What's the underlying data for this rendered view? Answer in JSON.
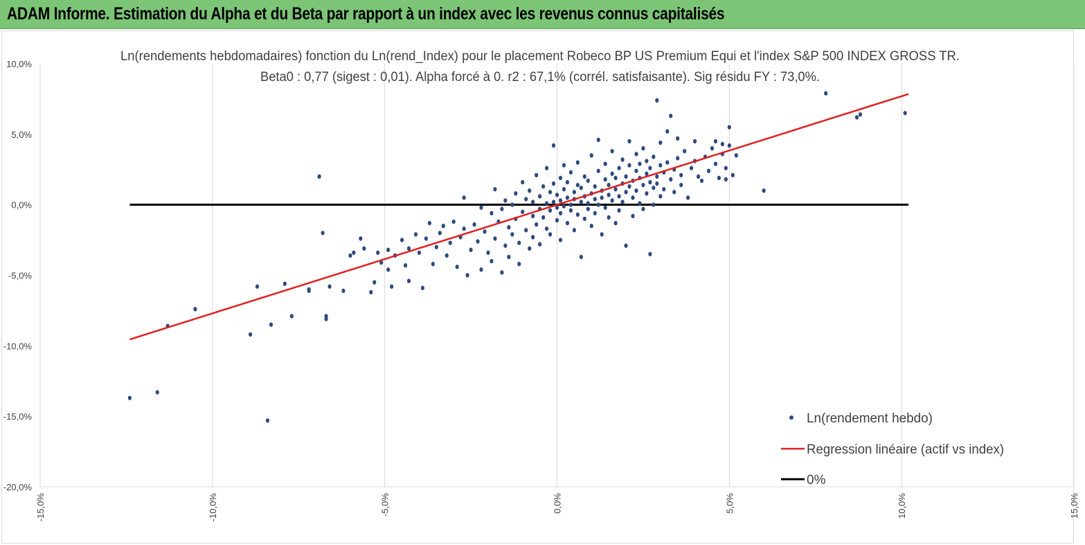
{
  "banner": {
    "title": "ADAM Informe. Estimation du Alpha et du Beta par rapport à un index avec les revenus connus capitalisés"
  },
  "colors": {
    "banner_bg": "#7cc576",
    "points": "#2e4a7f",
    "regression": "#e02020",
    "zero_line": "#000000",
    "grid": "#d9d9d9"
  },
  "chart_data": {
    "type": "scatter",
    "title": "Ln(rendements hebdomadaires) fonction du Ln(rend_Index) pour le placement Robeco BP US Premium Equi et l'index S&P 500 INDEX GROSS TR.",
    "subtitle": "Beta0 : 0,77  (sigest : 0,01). Alpha forcé à 0. r2 : 67,1% (corrél. satisfaisante). Sig résidu FY : 73,0%.",
    "xlim": [
      -15,
      15
    ],
    "ylim": [
      -20,
      10
    ],
    "x_ticks": [
      -15,
      -10,
      -5,
      0,
      5,
      10,
      15
    ],
    "x_tick_labels": [
      "-15,0%",
      "-10,0%",
      "-5,0%",
      "0,0%",
      "5,0%",
      "10,0%",
      "15,0%"
    ],
    "y_ticks": [
      10,
      5,
      0,
      -5,
      -10,
      -15,
      -20
    ],
    "y_tick_labels": [
      "10,0%",
      "5,0%",
      "0,0%",
      "-5,0%",
      "-10,0%",
      "-15,0%",
      "-20,0%"
    ],
    "grid": "vertical",
    "legend_position": "bottom-right",
    "legend": [
      {
        "label": "Ln(rendement hebdo)",
        "kind": "marker"
      },
      {
        "label": "Regression linéaire (actif vs index)",
        "kind": "line"
      },
      {
        "label": "0%",
        "kind": "line"
      }
    ],
    "regression": {
      "beta": 0.77,
      "x": [
        -12.4,
        10.2
      ],
      "y": [
        -9.55,
        7.85
      ]
    },
    "zero_line": {
      "x": [
        -12.4,
        10.2
      ],
      "y": [
        0,
        0
      ]
    },
    "series": [
      {
        "name": "Ln(rendement hebdo)",
        "points": [
          [
            -12.4,
            -13.7
          ],
          [
            -11.6,
            -13.3
          ],
          [
            -11.3,
            -8.6
          ],
          [
            -10.5,
            -7.4
          ],
          [
            -8.9,
            -9.2
          ],
          [
            -8.7,
            -5.8
          ],
          [
            -8.4,
            -15.3
          ],
          [
            -8.3,
            -8.5
          ],
          [
            -7.9,
            -5.6
          ],
          [
            -7.7,
            -7.9
          ],
          [
            -7.2,
            -6.0
          ],
          [
            -7.2,
            -6.1
          ],
          [
            -6.9,
            2.0
          ],
          [
            -6.8,
            -2.0
          ],
          [
            -6.7,
            -8.1
          ],
          [
            -6.7,
            -7.9
          ],
          [
            -6.6,
            -5.8
          ],
          [
            -6.2,
            -6.1
          ],
          [
            -6.0,
            -3.6
          ],
          [
            -5.9,
            -3.4
          ],
          [
            -5.7,
            -2.4
          ],
          [
            -5.6,
            -3.1
          ],
          [
            -5.4,
            -6.2
          ],
          [
            -5.3,
            -5.5
          ],
          [
            -5.2,
            -3.4
          ],
          [
            -5.1,
            -4.1
          ],
          [
            -4.9,
            -3.2
          ],
          [
            -4.9,
            -4.6
          ],
          [
            -4.8,
            -5.8
          ],
          [
            -4.7,
            -3.6
          ],
          [
            -4.5,
            -2.5
          ],
          [
            -4.4,
            -4.3
          ],
          [
            -4.3,
            -3.1
          ],
          [
            -4.3,
            -5.4
          ],
          [
            -4.1,
            -2.1
          ],
          [
            -4.0,
            -3.4
          ],
          [
            -3.9,
            -5.9
          ],
          [
            -3.8,
            -2.4
          ],
          [
            -3.7,
            -1.3
          ],
          [
            -3.6,
            -4.2
          ],
          [
            -3.5,
            -3.0
          ],
          [
            -3.4,
            -2.0
          ],
          [
            -3.3,
            -1.5
          ],
          [
            -3.2,
            -3.6
          ],
          [
            -3.1,
            -2.7
          ],
          [
            -3.0,
            -1.2
          ],
          [
            -2.9,
            -4.4
          ],
          [
            -2.8,
            -2.3
          ],
          [
            -2.7,
            0.5
          ],
          [
            -2.7,
            -1.7
          ],
          [
            -2.6,
            -5.0
          ],
          [
            -2.5,
            -3.2
          ],
          [
            -2.4,
            -1.4
          ],
          [
            -2.3,
            -2.6
          ],
          [
            -2.2,
            -0.2
          ],
          [
            -2.2,
            -4.6
          ],
          [
            -2.1,
            -1.9
          ],
          [
            -2.0,
            -3.4
          ],
          [
            -1.9,
            -0.6
          ],
          [
            -1.9,
            -4.0
          ],
          [
            -1.8,
            1.1
          ],
          [
            -1.8,
            -2.4
          ],
          [
            -1.7,
            -1.2
          ],
          [
            -1.6,
            -4.8
          ],
          [
            -1.6,
            -0.3
          ],
          [
            -1.5,
            -2.9
          ],
          [
            -1.5,
            0.3
          ],
          [
            -1.4,
            -1.6
          ],
          [
            -1.4,
            -3.7
          ],
          [
            -1.3,
            0.0
          ],
          [
            -1.3,
            -2.1
          ],
          [
            -1.2,
            0.8
          ],
          [
            -1.2,
            -1.0
          ],
          [
            -1.1,
            -4.2
          ],
          [
            -1.1,
            -2.7
          ],
          [
            -1.0,
            1.6
          ],
          [
            -1.0,
            -0.5
          ],
          [
            -0.9,
            -1.8
          ],
          [
            -0.9,
            0.4
          ],
          [
            -0.8,
            -3.1
          ],
          [
            -0.8,
            1.0
          ],
          [
            -0.7,
            -0.8
          ],
          [
            -0.7,
            -2.3
          ],
          [
            -0.7,
            0.2
          ],
          [
            -0.6,
            2.1
          ],
          [
            -0.6,
            -1.4
          ],
          [
            -0.5,
            0.6
          ],
          [
            -0.5,
            -0.3
          ],
          [
            -0.5,
            -2.8
          ],
          [
            -0.4,
            1.3
          ],
          [
            -0.4,
            -0.9
          ],
          [
            -0.3,
            0.1
          ],
          [
            -0.3,
            -1.7
          ],
          [
            -0.3,
            2.6
          ],
          [
            -0.2,
            0.9
          ],
          [
            -0.2,
            -0.4
          ],
          [
            -0.2,
            -2.1
          ],
          [
            -0.1,
            1.5
          ],
          [
            -0.1,
            0.2
          ],
          [
            -0.1,
            4.2
          ],
          [
            0.0,
            -1.1
          ],
          [
            0.0,
            0.7
          ],
          [
            0.0,
            -0.2
          ],
          [
            0.1,
            1.9
          ],
          [
            0.1,
            0.3
          ],
          [
            0.1,
            -0.6
          ],
          [
            0.1,
            -2.5
          ],
          [
            0.2,
            1.1
          ],
          [
            0.2,
            -0.1
          ],
          [
            0.2,
            2.8
          ],
          [
            0.3,
            0.5
          ],
          [
            0.3,
            -1.3
          ],
          [
            0.3,
            1.6
          ],
          [
            0.4,
            0.0
          ],
          [
            0.4,
            -0.4
          ],
          [
            0.4,
            2.3
          ],
          [
            0.5,
            0.9
          ],
          [
            0.5,
            -1.8
          ],
          [
            0.5,
            0.4
          ],
          [
            0.6,
            1.4
          ],
          [
            0.6,
            -0.7
          ],
          [
            0.6,
            3.0
          ],
          [
            0.7,
            0.2
          ],
          [
            0.7,
            -3.7
          ],
          [
            0.7,
            1.2
          ],
          [
            0.8,
            0.6
          ],
          [
            0.8,
            -1.0
          ],
          [
            0.8,
            2.0
          ],
          [
            0.9,
            0.1
          ],
          [
            0.9,
            -0.3
          ],
          [
            0.9,
            1.7
          ],
          [
            1.0,
            0.8
          ],
          [
            1.0,
            -1.5
          ],
          [
            1.0,
            3.5
          ],
          [
            1.1,
            0.4
          ],
          [
            1.1,
            1.3
          ],
          [
            1.1,
            -0.6
          ],
          [
            1.2,
            2.4
          ],
          [
            1.2,
            0.0
          ],
          [
            1.2,
            4.6
          ],
          [
            1.3,
            1.0
          ],
          [
            1.3,
            -2.1
          ],
          [
            1.3,
            0.5
          ],
          [
            1.4,
            1.8
          ],
          [
            1.4,
            -0.2
          ],
          [
            1.4,
            2.9
          ],
          [
            1.5,
            0.7
          ],
          [
            1.5,
            1.4
          ],
          [
            1.5,
            -0.9
          ],
          [
            1.6,
            2.2
          ],
          [
            1.6,
            0.3
          ],
          [
            1.6,
            3.8
          ],
          [
            1.7,
            1.1
          ],
          [
            1.7,
            -1.3
          ],
          [
            1.7,
            1.9
          ],
          [
            1.8,
            0.6
          ],
          [
            1.8,
            2.6
          ],
          [
            1.8,
            -0.4
          ],
          [
            1.9,
            1.5
          ],
          [
            1.9,
            3.2
          ],
          [
            1.9,
            0.2
          ],
          [
            2.0,
            2.0
          ],
          [
            2.0,
            0.9
          ],
          [
            2.0,
            -2.9
          ],
          [
            2.1,
            1.3
          ],
          [
            2.1,
            2.8
          ],
          [
            2.1,
            4.5
          ],
          [
            2.2,
            0.5
          ],
          [
            2.2,
            1.7
          ],
          [
            2.2,
            -0.8
          ],
          [
            2.3,
            2.4
          ],
          [
            2.3,
            1.0
          ],
          [
            2.3,
            3.6
          ],
          [
            2.4,
            1.9
          ],
          [
            2.4,
            0.1
          ],
          [
            2.4,
            2.9
          ],
          [
            2.5,
            1.4
          ],
          [
            2.5,
            4.0
          ],
          [
            2.5,
            -0.3
          ],
          [
            2.6,
            2.2
          ],
          [
            2.6,
            0.8
          ],
          [
            2.6,
            3.1
          ],
          [
            2.7,
            1.6
          ],
          [
            2.7,
            -3.5
          ],
          [
            2.7,
            2.6
          ],
          [
            2.8,
            1.2
          ],
          [
            2.8,
            3.4
          ],
          [
            2.8,
            0.0
          ],
          [
            2.9,
            2.0
          ],
          [
            2.9,
            7.4
          ],
          [
            2.9,
            1.5
          ],
          [
            3.0,
            2.8
          ],
          [
            3.0,
            4.4
          ],
          [
            3.0,
            0.6
          ],
          [
            3.1,
            2.3
          ],
          [
            3.1,
            1.1
          ],
          [
            3.2,
            5.2
          ],
          [
            3.2,
            3.0
          ],
          [
            3.3,
            1.8
          ],
          [
            3.3,
            6.3
          ],
          [
            3.4,
            2.5
          ],
          [
            3.4,
            0.9
          ],
          [
            3.5,
            4.7
          ],
          [
            3.5,
            3.3
          ],
          [
            3.6,
            2.1
          ],
          [
            3.6,
            1.4
          ],
          [
            3.7,
            3.8
          ],
          [
            3.8,
            0.5
          ],
          [
            3.9,
            2.6
          ],
          [
            4.0,
            3.1
          ],
          [
            4.0,
            4.5
          ],
          [
            4.1,
            2.0
          ],
          [
            4.2,
            1.7
          ],
          [
            4.3,
            3.4
          ],
          [
            4.4,
            2.4
          ],
          [
            4.5,
            4.0
          ],
          [
            4.6,
            2.9
          ],
          [
            4.6,
            4.5
          ],
          [
            4.7,
            1.9
          ],
          [
            4.8,
            3.6
          ],
          [
            4.8,
            4.3
          ],
          [
            4.9,
            2.6
          ],
          [
            4.9,
            1.8
          ],
          [
            5.0,
            4.2
          ],
          [
            5.0,
            5.5
          ],
          [
            5.1,
            2.1
          ],
          [
            5.2,
            3.5
          ],
          [
            6.0,
            1.0
          ],
          [
            7.8,
            7.9
          ],
          [
            8.7,
            6.2
          ],
          [
            8.8,
            6.4
          ],
          [
            10.1,
            6.5
          ]
        ]
      }
    ]
  }
}
